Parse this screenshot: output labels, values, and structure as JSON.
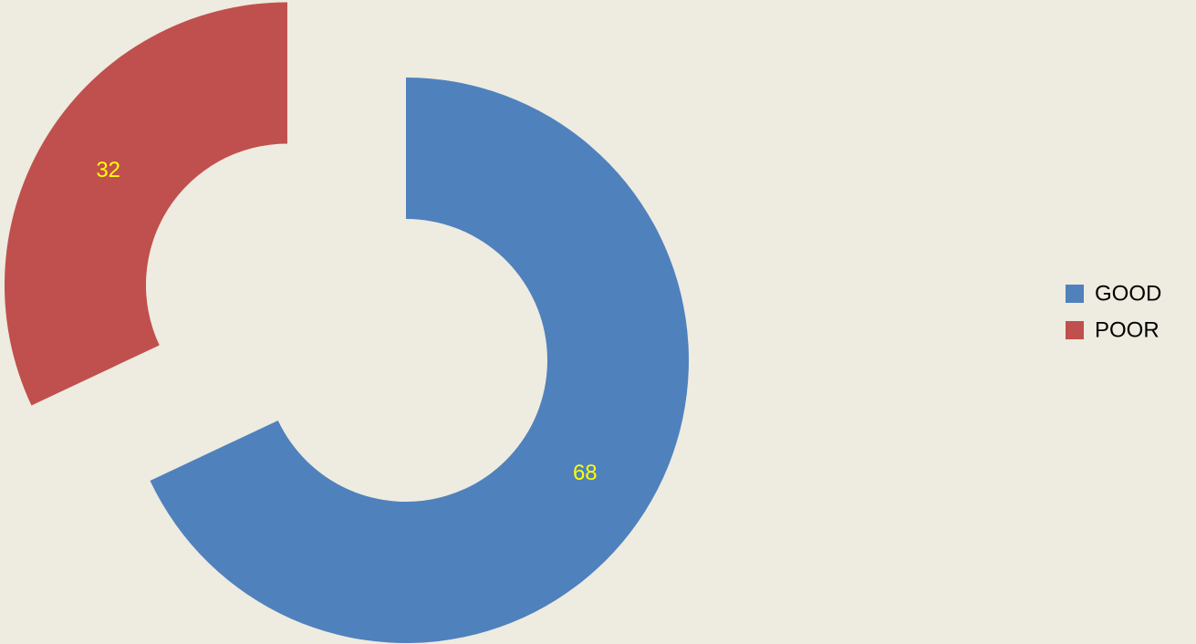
{
  "chart_data": {
    "type": "donut",
    "categories": [
      "GOOD",
      "POOR"
    ],
    "values": [
      68,
      32
    ],
    "colors": [
      "#4f81bd",
      "#c0504d"
    ],
    "exploded": "POOR",
    "label_color": "#ffff00",
    "legend": "right"
  }
}
